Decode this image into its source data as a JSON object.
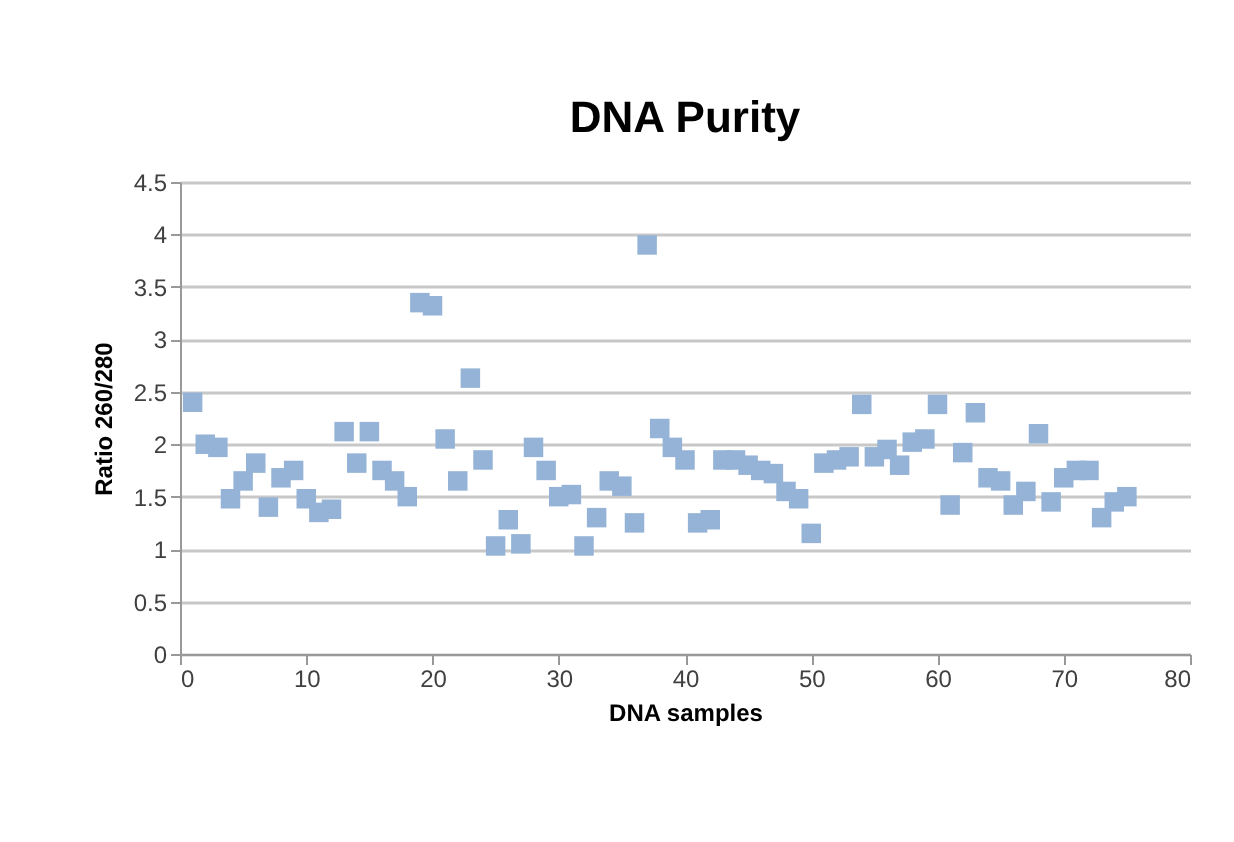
{
  "chart_data": {
    "type": "scatter",
    "title": "DNA Purity",
    "xlabel": "DNA samples",
    "ylabel": "Ratio 260/280",
    "x": [
      1,
      2,
      3,
      4,
      5,
      6,
      7,
      8,
      9,
      10,
      11,
      12,
      13,
      14,
      15,
      16,
      17,
      18,
      19,
      20,
      21,
      22,
      23,
      24,
      25,
      26,
      27,
      28,
      29,
      30,
      31,
      32,
      33,
      34,
      35,
      36,
      37,
      38,
      39,
      40,
      41,
      42,
      43,
      44,
      45,
      46,
      47,
      48,
      49,
      50,
      51,
      52,
      53,
      54,
      55,
      56,
      57,
      58,
      59,
      60,
      61,
      62,
      63,
      64,
      65,
      66,
      67,
      68,
      69,
      70,
      71,
      72,
      73,
      74,
      75
    ],
    "series": [
      {
        "color": "#95b3d7",
        "values": [
          2.4,
          2.0,
          1.97,
          1.48,
          1.65,
          1.82,
          1.4,
          1.68,
          1.75,
          1.48,
          1.35,
          1.38,
          2.12,
          1.82,
          2.12,
          1.75,
          1.65,
          1.5,
          3.35,
          3.32,
          2.05,
          1.65,
          2.63,
          1.85,
          1.03,
          1.28,
          1.05,
          1.97,
          1.75,
          1.5,
          1.52,
          1.03,
          1.3,
          1.65,
          1.6,
          1.25,
          3.9,
          2.15,
          1.97,
          1.85,
          1.25,
          1.28,
          1.85,
          1.85,
          1.8,
          1.75,
          1.72,
          1.55,
          1.48,
          1.15,
          1.82,
          1.85,
          1.88,
          2.38,
          1.88,
          1.95,
          1.8,
          2.02,
          2.05,
          2.38,
          1.42,
          1.92,
          2.3,
          1.68,
          1.65,
          1.42,
          1.55,
          2.1,
          1.45,
          1.68,
          1.75,
          1.75,
          1.3,
          1.45,
          1.5
        ]
      }
    ],
    "xlim": [
      0,
      80
    ],
    "xticks": [
      0,
      10,
      20,
      30,
      40,
      50,
      60,
      70,
      80
    ],
    "ylim": [
      0,
      4.5
    ],
    "yticks": [
      0,
      0.5,
      1,
      1.5,
      2,
      2.5,
      3,
      3.5,
      4,
      4.5
    ],
    "grid": "y",
    "marker": "square",
    "legend": false
  }
}
